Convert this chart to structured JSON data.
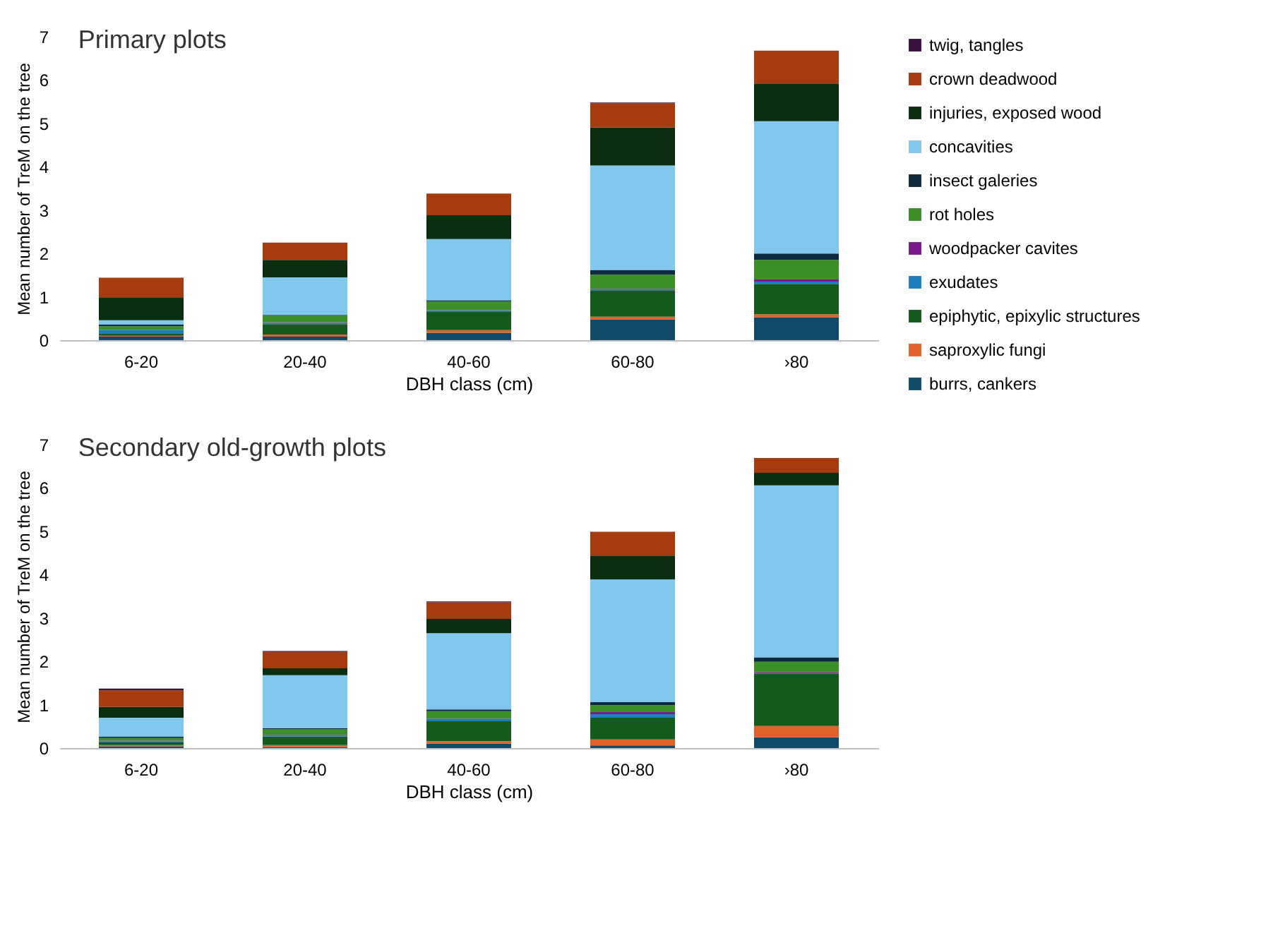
{
  "chart_data": [
    {
      "type": "bar",
      "stacked": true,
      "title": "Primary plots",
      "xlabel": "DBH class (cm)",
      "ylabel": "Mean number of TreM on the tree",
      "categories": [
        "6-20",
        "20-40",
        "40-60",
        "60-80",
        "›80"
      ],
      "ylim": [
        0,
        7
      ],
      "yticks": [
        0,
        1,
        2,
        3,
        4,
        5,
        6,
        7
      ],
      "grid": false,
      "legend": "right",
      "series": [
        {
          "name": "burrs, cankers",
          "color": "#124a6a",
          "values": [
            0.08,
            0.08,
            0.17,
            0.48,
            0.53
          ]
        },
        {
          "name": "saproxylic fungi",
          "color": "#e0622a",
          "values": [
            0.02,
            0.05,
            0.06,
            0.06,
            0.07
          ]
        },
        {
          "name": "epiphytic, epixylic structures",
          "color": "#145a1a",
          "values": [
            0.06,
            0.24,
            0.42,
            0.61,
            0.7
          ]
        },
        {
          "name": "exudates",
          "color": "#1e7fc0",
          "values": [
            0.08,
            0.03,
            0.03,
            0.03,
            0.05
          ]
        },
        {
          "name": "woodpacker cavites",
          "color": "#7a1a8a",
          "values": [
            0,
            0.01,
            0.01,
            0.01,
            0.05
          ]
        },
        {
          "name": "rot holes",
          "color": "#3b8f26",
          "values": [
            0.08,
            0.15,
            0.2,
            0.32,
            0.45
          ]
        },
        {
          "name": "insect galeries",
          "color": "#0e2a3f",
          "values": [
            0.04,
            0.02,
            0.03,
            0.11,
            0.15
          ]
        },
        {
          "name": "concavities",
          "color": "#82c7ed",
          "values": [
            0.1,
            0.87,
            1.41,
            2.41,
            3.05
          ]
        },
        {
          "name": "injuries, exposed wood",
          "color": "#0c2e10",
          "values": [
            0.53,
            0.4,
            0.55,
            0.88,
            0.87
          ]
        },
        {
          "name": "crown deadwood",
          "color": "#a63b10",
          "values": [
            0.45,
            0.4,
            0.5,
            0.55,
            0.76
          ]
        },
        {
          "name": "twig, tangles",
          "color": "#3b0f3f",
          "values": [
            0,
            0,
            0,
            0.02,
            0
          ]
        }
      ]
    },
    {
      "type": "bar",
      "stacked": true,
      "title": "Secondary old-growth plots",
      "xlabel": "DBH class (cm)",
      "ylabel": "Mean number of TreM on the tree",
      "categories": [
        "6-20",
        "20-40",
        "40-60",
        "60-80",
        "›80"
      ],
      "ylim": [
        0,
        7
      ],
      "yticks": [
        0,
        1,
        2,
        3,
        4,
        5,
        6,
        7
      ],
      "grid": false,
      "legend": "right",
      "series": [
        {
          "name": "burrs, cankers",
          "color": "#124a6a",
          "values": [
            0.04,
            0.02,
            0.1,
            0.06,
            0.25
          ]
        },
        {
          "name": "saproxylic fungi",
          "color": "#e0622a",
          "values": [
            0.03,
            0.05,
            0.06,
            0.14,
            0.26
          ]
        },
        {
          "name": "epiphytic, epixylic structures",
          "color": "#145a1a",
          "values": [
            0.06,
            0.2,
            0.46,
            0.5,
            1.2
          ]
        },
        {
          "name": "exudates",
          "color": "#1e7fc0",
          "values": [
            0.03,
            0.03,
            0.05,
            0.08,
            0.01
          ]
        },
        {
          "name": "woodpacker cavites",
          "color": "#7a1a8a",
          "values": [
            0.01,
            0.01,
            0.01,
            0.05,
            0.03
          ]
        },
        {
          "name": "rot holes",
          "color": "#3b8f26",
          "values": [
            0.06,
            0.12,
            0.17,
            0.16,
            0.24
          ]
        },
        {
          "name": "insect galeries",
          "color": "#0e2a3f",
          "values": [
            0.03,
            0.03,
            0.04,
            0.07,
            0.1
          ]
        },
        {
          "name": "concavities",
          "color": "#82c7ed",
          "values": [
            0.44,
            1.22,
            1.76,
            2.83,
            3.97
          ]
        },
        {
          "name": "injuries, exposed wood",
          "color": "#0c2e10",
          "values": [
            0.25,
            0.16,
            0.33,
            0.55,
            0.29
          ]
        },
        {
          "name": "crown deadwood",
          "color": "#a63b10",
          "values": [
            0.38,
            0.38,
            0.38,
            0.55,
            0.34
          ]
        },
        {
          "name": "twig, tangles",
          "color": "#3b0f3f",
          "values": [
            0.04,
            0.02,
            0.02,
            0,
            0
          ]
        }
      ]
    }
  ]
}
